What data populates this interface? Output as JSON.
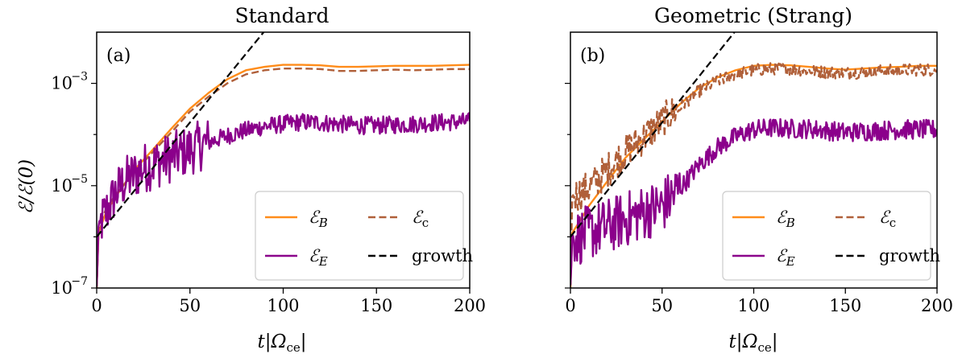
{
  "chart_data": [
    {
      "type": "line",
      "title": "Standard",
      "panel_label": "(a)",
      "xlabel": "t|Ω",
      "xlabel_sub": "ce",
      "ylabel": "ℰ/ℰ(0)",
      "xlim": [
        0,
        200
      ],
      "ylim_log10": [
        -7,
        -2
      ],
      "log_y": true,
      "xticks": [
        "0",
        "50",
        "100",
        "150",
        "200"
      ],
      "yticks": [
        {
          "base": "10",
          "exp": "−7",
          "value": 1e-07
        },
        {
          "base": "10",
          "exp": "−5",
          "value": 1e-05
        },
        {
          "base": "10",
          "exp": "−3",
          "value": 0.001
        }
      ],
      "legend_position": "lower-right",
      "series": [
        {
          "name": "ℰ",
          "sub": "B",
          "color": "#ff8c1a",
          "style": "solid",
          "t": [
            0,
            1,
            5,
            10,
            20,
            30,
            40,
            50,
            60,
            70,
            80,
            90,
            100,
            110,
            120,
            130,
            140,
            150,
            160,
            170,
            180,
            190,
            200
          ],
          "y": [
            1e-07,
            1.2e-06,
            3e-06,
            6e-06,
            2e-05,
            5e-05,
            0.00013,
            0.00032,
            0.00065,
            0.0012,
            0.0018,
            0.0021,
            0.0023,
            0.0023,
            0.00225,
            0.0021,
            0.0021,
            0.00215,
            0.0022,
            0.0022,
            0.0022,
            0.00225,
            0.0023
          ]
        },
        {
          "name": "ℰ",
          "sub": "c",
          "color": "#b0603a",
          "style": "dashed",
          "t": [
            0,
            1,
            5,
            10,
            20,
            30,
            40,
            50,
            60,
            70,
            80,
            90,
            100,
            110,
            120,
            130,
            140,
            150,
            160,
            170,
            180,
            190,
            200
          ],
          "y": [
            1e-07,
            1.5e-06,
            3.5e-06,
            6.5e-06,
            1.8e-05,
            4.5e-05,
            0.00011,
            0.00028,
            0.00055,
            0.001,
            0.0015,
            0.0018,
            0.00195,
            0.00195,
            0.0019,
            0.00175,
            0.00175,
            0.0018,
            0.00185,
            0.0018,
            0.00185,
            0.0019,
            0.0019
          ]
        },
        {
          "name": "ℰ",
          "sub": "E",
          "color": "#8b008b",
          "style": "solid",
          "t": [
            0,
            1,
            5,
            10,
            15,
            20,
            25,
            30,
            35,
            40,
            45,
            50,
            60,
            70,
            80,
            90,
            100,
            110,
            120,
            130,
            140,
            150,
            160,
            170,
            180,
            190,
            200
          ],
          "y": [
            1e-07,
            1.5e-06,
            3e-06,
            7e-06,
            1.2e-05,
            1.6e-05,
            2.2e-05,
            2.6e-05,
            3e-05,
            3.6e-05,
            4.2e-05,
            5e-05,
            7e-05,
            9.5e-05,
            0.00012,
            0.000145,
            0.00016,
            0.000175,
            0.00017,
            0.00016,
            0.00015,
            0.00015,
            0.000155,
            0.00016,
            0.00017,
            0.000175,
            0.00018
          ],
          "noise": 0.5
        },
        {
          "name": "growth",
          "color": "#000000",
          "style": "dashed",
          "t": [
            0,
            89.5
          ],
          "y": [
            1e-06,
            0.01
          ]
        }
      ]
    },
    {
      "type": "line",
      "title": "Geometric (Strang)",
      "panel_label": "(b)",
      "xlabel": "t|Ω",
      "xlabel_sub": "ce",
      "xlim": [
        0,
        200
      ],
      "ylim_log10": [
        -7,
        -2
      ],
      "log_y": true,
      "xticks": [
        "0",
        "50",
        "100",
        "150",
        "200"
      ],
      "legend_position": "lower-right",
      "series": [
        {
          "name": "ℰ",
          "sub": "B",
          "color": "#ff8c1a",
          "style": "solid",
          "t": [
            0,
            1,
            5,
            10,
            20,
            30,
            40,
            50,
            60,
            70,
            80,
            90,
            100,
            110,
            120,
            130,
            140,
            150,
            160,
            170,
            180,
            190,
            200
          ],
          "y": [
            1e-07,
            1.2e-06,
            2e-06,
            4e-06,
            1.2e-05,
            3.5e-05,
            8e-05,
            0.00018,
            0.0004,
            0.0008,
            0.0013,
            0.0018,
            0.0022,
            0.0023,
            0.00225,
            0.0021,
            0.00195,
            0.00185,
            0.00195,
            0.00205,
            0.0021,
            0.0022,
            0.0022
          ]
        },
        {
          "name": "ℰ",
          "sub": "c",
          "color": "#b0603a",
          "style": "dashed",
          "t": [
            0,
            1,
            5,
            10,
            20,
            30,
            40,
            50,
            60,
            70,
            80,
            90,
            100,
            110,
            120,
            130,
            140,
            150,
            160,
            170,
            180,
            190,
            200
          ],
          "y": [
            1e-07,
            6e-06,
            7e-06,
            9e-06,
            2e-05,
            4.5e-05,
            9e-05,
            0.00018,
            0.00035,
            0.0007,
            0.0011,
            0.0015,
            0.0018,
            0.00195,
            0.0019,
            0.0018,
            0.00165,
            0.0016,
            0.00165,
            0.00175,
            0.0018,
            0.00185,
            0.00185
          ],
          "noise": 0.35
        },
        {
          "name": "ℰ",
          "sub": "E",
          "color": "#8b008b",
          "style": "solid",
          "t": [
            0,
            1,
            5,
            10,
            15,
            20,
            30,
            40,
            50,
            60,
            70,
            80,
            90,
            100,
            110,
            120,
            130,
            140,
            150,
            160,
            170,
            180,
            190,
            200
          ],
          "y": [
            1e-07,
            1e-06,
            1e-06,
            1.2e-06,
            1.4e-06,
            1.6e-06,
            2.2e-06,
            3e-06,
            4e-06,
            9e-06,
            2.5e-05,
            5.5e-05,
            9e-05,
            0.000125,
            0.000135,
            0.00013,
            0.00013,
            0.00012,
            0.00011,
            0.000115,
            0.00012,
            0.000125,
            0.000125,
            0.000125
          ],
          "noise": 0.55
        },
        {
          "name": "growth",
          "color": "#000000",
          "style": "dashed",
          "t": [
            0,
            89.5
          ],
          "y": [
            1e-06,
            0.01
          ]
        }
      ]
    }
  ]
}
